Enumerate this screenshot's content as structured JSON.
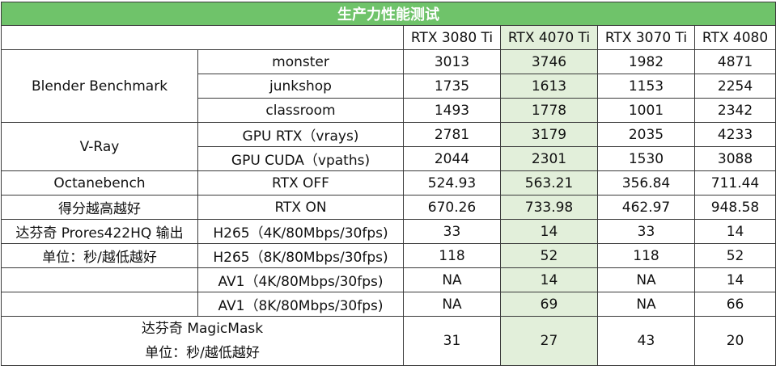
{
  "table": {
    "title": "生产力性能测试",
    "columns": [
      "RTX 3080 Ti",
      "RTX 4070 Ti",
      "RTX 3070 Ti",
      "RTX 4080"
    ],
    "highlight_color": "#e2efda",
    "header_color": "#6fc36a",
    "groups": {
      "blender": "Blender Benchmark",
      "vray": "V-Ray",
      "octane_line1": "Octanebench",
      "octane_line2": "得分越高越好",
      "davinci_line1": "达芬奇 Prores422HQ 输出",
      "davinci_line2": "单位：秒/越低越好",
      "magic_line1": "达芬奇 MagicMask",
      "magic_line2": "单位：秒/越低越好"
    },
    "rows": [
      {
        "label": "monster",
        "values": [
          "3013",
          "3746",
          "1982",
          "4871"
        ]
      },
      {
        "label": "junkshop",
        "values": [
          "1735",
          "1613",
          "1153",
          "2254"
        ]
      },
      {
        "label": "classroom",
        "values": [
          "1493",
          "1778",
          "1001",
          "2342"
        ]
      },
      {
        "label": "GPU RTX（vrays)",
        "values": [
          "2781",
          "3179",
          "2035",
          "4233"
        ]
      },
      {
        "label": "GPU CUDA（vpaths)",
        "values": [
          "2044",
          "2301",
          "1530",
          "3088"
        ]
      },
      {
        "label": "RTX OFF",
        "values": [
          "524.93",
          "563.21",
          "356.84",
          "711.44"
        ]
      },
      {
        "label": "RTX ON",
        "values": [
          "670.26",
          "733.98",
          "462.97",
          "948.58"
        ]
      },
      {
        "label": "H265（4K/80Mbps/30fps)",
        "values": [
          "33",
          "14",
          "33",
          "14"
        ]
      },
      {
        "label": "H265（8K/80Mbps/30fps)",
        "values": [
          "118",
          "52",
          "118",
          "52"
        ]
      },
      {
        "label": "AV1（4K/80Mbps/30fps)",
        "values": [
          "NA",
          "14",
          "NA",
          "14"
        ]
      },
      {
        "label": "AV1（8K/80Mbps/30fps)",
        "values": [
          "NA",
          "69",
          "NA",
          "66"
        ]
      }
    ],
    "magic_values": [
      "31",
      "27",
      "43",
      "20"
    ]
  }
}
